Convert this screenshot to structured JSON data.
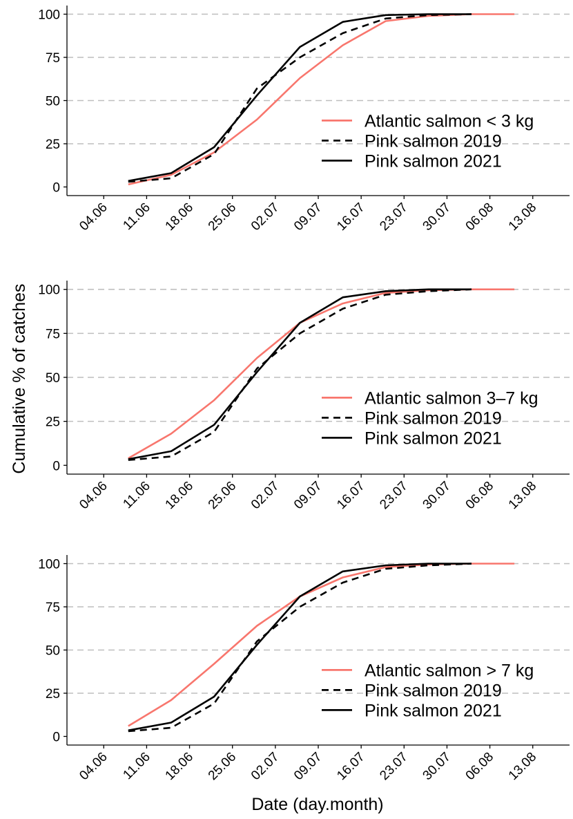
{
  "y_axis_title": "Cumulative % of catches",
  "x_axis_title": "Date (day.month)",
  "colors": {
    "atlantic": "#F8766D",
    "pink": "#000000",
    "grid": "#BEBEBE"
  },
  "chart_data": [
    {
      "type": "line",
      "ylim": [
        -5,
        105
      ],
      "y_ticks": [
        0,
        25,
        50,
        75,
        100
      ],
      "x_tick_labels": [
        "04.06",
        "11.06",
        "18.06",
        "25.06",
        "02.07",
        "09.07",
        "16.07",
        "23.07",
        "30.07",
        "06.08",
        "13.08"
      ],
      "xlim": [
        "2000-05-29",
        "2000-08-19"
      ],
      "grid": "horizontal dashed at y ticks",
      "legend_position": "right",
      "series": [
        {
          "name": "Atlantic salmon < 3 kg",
          "style": "solid",
          "color": "#F8766D",
          "x": [
            "2000-06-08",
            "2000-06-15",
            "2000-06-22",
            "2000-06-29",
            "2000-07-06",
            "2000-07-13",
            "2000-07-20",
            "2000-07-27",
            "2000-08-03",
            "2000-08-10"
          ],
          "y": [
            1.5,
            7,
            20,
            39,
            63,
            82,
            96,
            99,
            100,
            100
          ]
        },
        {
          "name": "Pink salmon 2019",
          "style": "dashed",
          "color": "#000000",
          "x": [
            "2000-06-08",
            "2000-06-15",
            "2000-06-22",
            "2000-06-29",
            "2000-07-06",
            "2000-07-13",
            "2000-07-20",
            "2000-07-27",
            "2000-08-03"
          ],
          "y": [
            3,
            5,
            19,
            57,
            75,
            89,
            97.5,
            99.5,
            100
          ]
        },
        {
          "name": "Pink salmon 2021",
          "style": "solid",
          "color": "#000000",
          "x": [
            "2000-06-08",
            "2000-06-15",
            "2000-06-22",
            "2000-06-29",
            "2000-07-06",
            "2000-07-13",
            "2000-07-20",
            "2000-07-27",
            "2000-08-03"
          ],
          "y": [
            3.5,
            8,
            23,
            53,
            81,
            95.5,
            99.5,
            100,
            100
          ]
        }
      ]
    },
    {
      "type": "line",
      "ylim": [
        -5,
        105
      ],
      "y_ticks": [
        0,
        25,
        50,
        75,
        100
      ],
      "x_tick_labels": [
        "04.06",
        "11.06",
        "18.06",
        "25.06",
        "02.07",
        "09.07",
        "16.07",
        "23.07",
        "30.07",
        "06.08",
        "13.08"
      ],
      "xlim": [
        "2000-05-29",
        "2000-08-19"
      ],
      "grid": "horizontal dashed at y ticks",
      "legend_position": "right",
      "series": [
        {
          "name": "Atlantic salmon 3–7 kg",
          "style": "solid",
          "color": "#F8766D",
          "x": [
            "2000-06-08",
            "2000-06-15",
            "2000-06-22",
            "2000-06-29",
            "2000-07-06",
            "2000-07-13",
            "2000-07-20",
            "2000-07-27",
            "2000-08-03",
            "2000-08-10"
          ],
          "y": [
            4,
            18,
            37,
            61,
            81,
            92,
            98,
            99.5,
            100,
            100
          ]
        },
        {
          "name": "Pink salmon 2019",
          "style": "dashed",
          "color": "#000000",
          "x": [
            "2000-06-08",
            "2000-06-15",
            "2000-06-22",
            "2000-06-29",
            "2000-07-06",
            "2000-07-13",
            "2000-07-20",
            "2000-07-27",
            "2000-08-03"
          ],
          "y": [
            3,
            5,
            19,
            55,
            75,
            89,
            97,
            99,
            100
          ]
        },
        {
          "name": "Pink salmon 2021",
          "style": "solid",
          "color": "#000000",
          "x": [
            "2000-06-08",
            "2000-06-15",
            "2000-06-22",
            "2000-06-29",
            "2000-07-06",
            "2000-07-13",
            "2000-07-20",
            "2000-07-27",
            "2000-08-03"
          ],
          "y": [
            3.5,
            8,
            23,
            53,
            81,
            95.5,
            99,
            100,
            100
          ]
        }
      ]
    },
    {
      "type": "line",
      "ylim": [
        -5,
        105
      ],
      "y_ticks": [
        0,
        25,
        50,
        75,
        100
      ],
      "x_tick_labels": [
        "04.06",
        "11.06",
        "18.06",
        "25.06",
        "02.07",
        "09.07",
        "16.07",
        "23.07",
        "30.07",
        "06.08",
        "13.08"
      ],
      "xlim": [
        "2000-05-29",
        "2000-08-19"
      ],
      "grid": "horizontal dashed at y ticks",
      "legend_position": "right",
      "series": [
        {
          "name": "Atlantic salmon > 7 kg",
          "style": "solid",
          "color": "#F8766D",
          "x": [
            "2000-06-08",
            "2000-06-15",
            "2000-06-22",
            "2000-06-29",
            "2000-07-06",
            "2000-07-13",
            "2000-07-20",
            "2000-07-27",
            "2000-08-03",
            "2000-08-10"
          ],
          "y": [
            6,
            21,
            42,
            64,
            81,
            92,
            98,
            99.5,
            100,
            100
          ]
        },
        {
          "name": "Pink salmon 2019",
          "style": "dashed",
          "color": "#000000",
          "x": [
            "2000-06-08",
            "2000-06-15",
            "2000-06-22",
            "2000-06-29",
            "2000-07-06",
            "2000-07-13",
            "2000-07-20",
            "2000-07-27",
            "2000-08-03"
          ],
          "y": [
            3,
            5,
            19,
            55,
            75,
            89,
            97,
            99,
            100
          ]
        },
        {
          "name": "Pink salmon 2021",
          "style": "solid",
          "color": "#000000",
          "x": [
            "2000-06-08",
            "2000-06-15",
            "2000-06-22",
            "2000-06-29",
            "2000-07-06",
            "2000-07-13",
            "2000-07-20",
            "2000-07-27",
            "2000-08-03"
          ],
          "y": [
            3.5,
            8,
            23,
            53,
            81,
            95.5,
            99,
            100,
            100
          ]
        }
      ]
    }
  ]
}
